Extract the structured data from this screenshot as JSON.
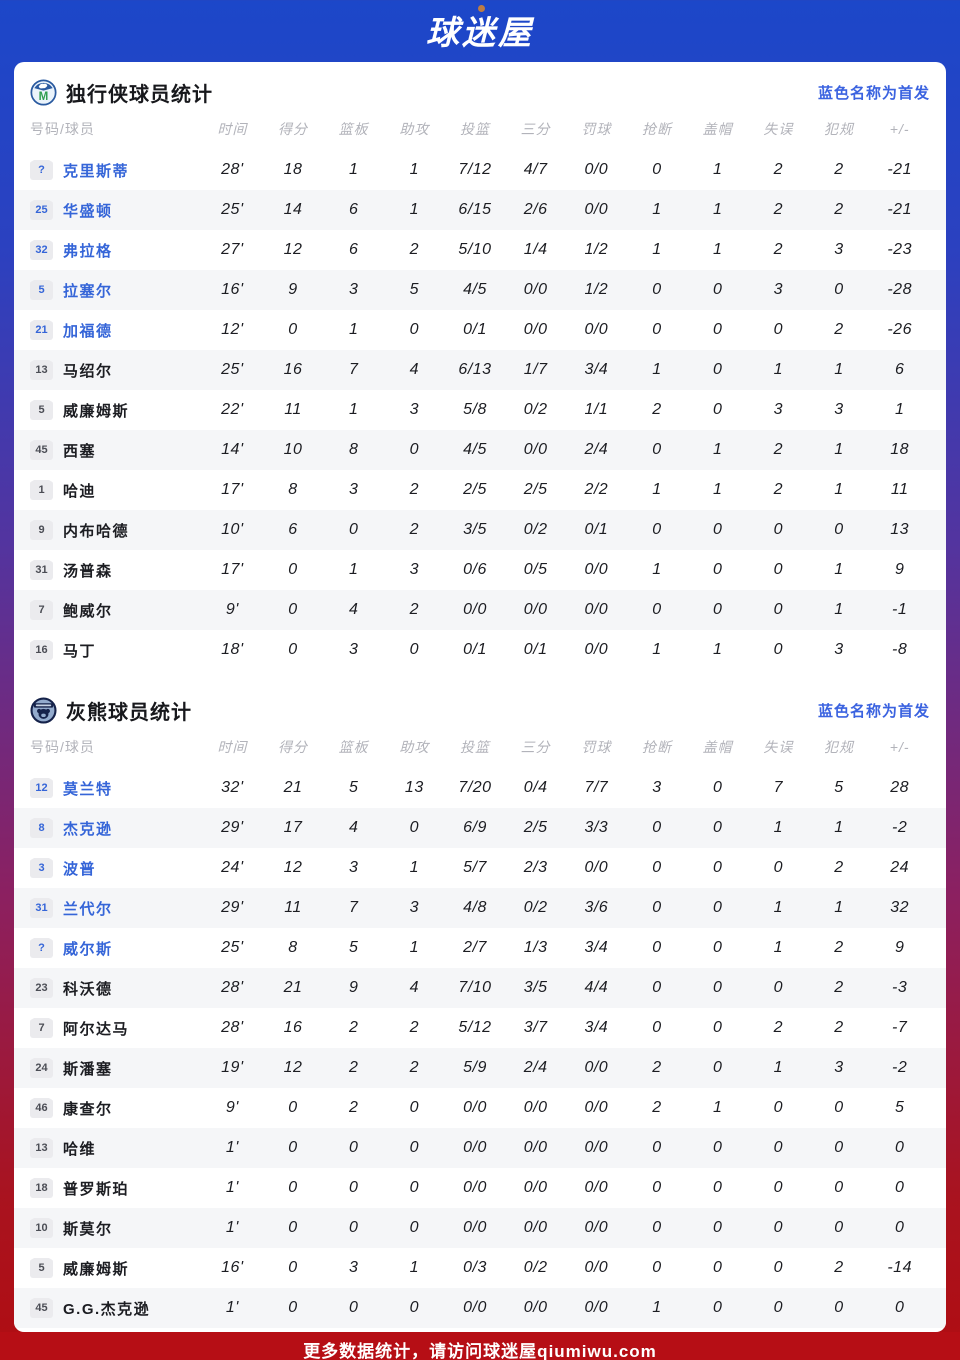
{
  "header": {
    "logo": "球迷屋"
  },
  "legend": "蓝色名称为首发",
  "columns": [
    "号码/球员",
    "时间",
    "得分",
    "篮板",
    "助攻",
    "投篮",
    "三分",
    "罚球",
    "抢断",
    "盖帽",
    "失误",
    "犯规",
    "+/-"
  ],
  "colors": {
    "header_blue": "#1c47c9",
    "accent_blue": "#3b63e0",
    "starter_blue": "#3565d8",
    "footer_red": "#b60e15",
    "row_stripe": "#f5f6f8"
  },
  "tables": [
    {
      "title": "独行侠球员统计",
      "team_icon": "mavericks-logo",
      "rows": [
        {
          "num": "?",
          "name": "克里斯蒂",
          "starter": true,
          "stats": [
            "28'",
            "18",
            "1",
            "1",
            "7/12",
            "4/7",
            "0/0",
            "0",
            "1",
            "2",
            "2",
            "-21"
          ]
        },
        {
          "num": "25",
          "name": "华盛顿",
          "starter": true,
          "stats": [
            "25'",
            "14",
            "6",
            "1",
            "6/15",
            "2/6",
            "0/0",
            "1",
            "1",
            "2",
            "2",
            "-21"
          ]
        },
        {
          "num": "32",
          "name": "弗拉格",
          "starter": true,
          "stats": [
            "27'",
            "12",
            "6",
            "2",
            "5/10",
            "1/4",
            "1/2",
            "1",
            "1",
            "2",
            "3",
            "-23"
          ]
        },
        {
          "num": "5",
          "name": "拉塞尔",
          "starter": true,
          "stats": [
            "16'",
            "9",
            "3",
            "5",
            "4/5",
            "0/0",
            "1/2",
            "0",
            "0",
            "3",
            "0",
            "-28"
          ]
        },
        {
          "num": "21",
          "name": "加福德",
          "starter": true,
          "stats": [
            "12'",
            "0",
            "1",
            "0",
            "0/1",
            "0/0",
            "0/0",
            "0",
            "0",
            "0",
            "2",
            "-26"
          ]
        },
        {
          "num": "13",
          "name": "马绍尔",
          "starter": false,
          "stats": [
            "25'",
            "16",
            "7",
            "4",
            "6/13",
            "1/7",
            "3/4",
            "1",
            "0",
            "1",
            "1",
            "6"
          ]
        },
        {
          "num": "5",
          "name": "威廉姆斯",
          "starter": false,
          "stats": [
            "22'",
            "11",
            "1",
            "3",
            "5/8",
            "0/2",
            "1/1",
            "2",
            "0",
            "3",
            "3",
            "1"
          ]
        },
        {
          "num": "45",
          "name": "西塞",
          "starter": false,
          "stats": [
            "14'",
            "10",
            "8",
            "0",
            "4/5",
            "0/0",
            "2/4",
            "0",
            "1",
            "2",
            "1",
            "18"
          ]
        },
        {
          "num": "1",
          "name": "哈迪",
          "starter": false,
          "stats": [
            "17'",
            "8",
            "3",
            "2",
            "2/5",
            "2/5",
            "2/2",
            "1",
            "1",
            "2",
            "1",
            "11"
          ]
        },
        {
          "num": "9",
          "name": "内布哈德",
          "starter": false,
          "stats": [
            "10'",
            "6",
            "0",
            "2",
            "3/5",
            "0/2",
            "0/1",
            "0",
            "0",
            "0",
            "0",
            "13"
          ]
        },
        {
          "num": "31",
          "name": "汤普森",
          "starter": false,
          "stats": [
            "17'",
            "0",
            "1",
            "3",
            "0/6",
            "0/5",
            "0/0",
            "1",
            "0",
            "0",
            "1",
            "9"
          ]
        },
        {
          "num": "7",
          "name": "鲍威尔",
          "starter": false,
          "stats": [
            "9'",
            "0",
            "4",
            "2",
            "0/0",
            "0/0",
            "0/0",
            "0",
            "0",
            "0",
            "1",
            "-1"
          ]
        },
        {
          "num": "16",
          "name": "马丁",
          "starter": false,
          "stats": [
            "18'",
            "0",
            "3",
            "0",
            "0/1",
            "0/1",
            "0/0",
            "1",
            "1",
            "0",
            "3",
            "-8"
          ]
        }
      ]
    },
    {
      "title": "灰熊球员统计",
      "team_icon": "grizzlies-logo",
      "rows": [
        {
          "num": "12",
          "name": "莫兰特",
          "starter": true,
          "stats": [
            "32'",
            "21",
            "5",
            "13",
            "7/20",
            "0/4",
            "7/7",
            "3",
            "0",
            "7",
            "5",
            "28"
          ]
        },
        {
          "num": "8",
          "name": "杰克逊",
          "starter": true,
          "stats": [
            "29'",
            "17",
            "4",
            "0",
            "6/9",
            "2/5",
            "3/3",
            "0",
            "0",
            "1",
            "1",
            "-2"
          ]
        },
        {
          "num": "3",
          "name": "波普",
          "starter": true,
          "stats": [
            "24'",
            "12",
            "3",
            "1",
            "5/7",
            "2/3",
            "0/0",
            "0",
            "0",
            "0",
            "2",
            "24"
          ]
        },
        {
          "num": "31",
          "name": "兰代尔",
          "starter": true,
          "stats": [
            "29'",
            "11",
            "7",
            "3",
            "4/8",
            "0/2",
            "3/6",
            "0",
            "0",
            "1",
            "1",
            "32"
          ]
        },
        {
          "num": "?",
          "name": "威尔斯",
          "starter": true,
          "stats": [
            "25'",
            "8",
            "5",
            "1",
            "2/7",
            "1/3",
            "3/4",
            "0",
            "0",
            "1",
            "2",
            "9"
          ]
        },
        {
          "num": "23",
          "name": "科沃德",
          "starter": false,
          "stats": [
            "28'",
            "21",
            "9",
            "4",
            "7/10",
            "3/5",
            "4/4",
            "0",
            "0",
            "0",
            "2",
            "-3"
          ]
        },
        {
          "num": "7",
          "name": "阿尔达马",
          "starter": false,
          "stats": [
            "28'",
            "16",
            "2",
            "2",
            "5/12",
            "3/7",
            "3/4",
            "0",
            "0",
            "2",
            "2",
            "-7"
          ]
        },
        {
          "num": "24",
          "name": "斯潘塞",
          "starter": false,
          "stats": [
            "19'",
            "12",
            "2",
            "2",
            "5/9",
            "2/4",
            "0/0",
            "2",
            "0",
            "1",
            "3",
            "-2"
          ]
        },
        {
          "num": "46",
          "name": "康查尔",
          "starter": false,
          "stats": [
            "9'",
            "0",
            "2",
            "0",
            "0/0",
            "0/0",
            "0/0",
            "2",
            "1",
            "0",
            "0",
            "5"
          ]
        },
        {
          "num": "13",
          "name": "哈维",
          "starter": false,
          "stats": [
            "1'",
            "0",
            "0",
            "0",
            "0/0",
            "0/0",
            "0/0",
            "0",
            "0",
            "0",
            "0",
            "0"
          ]
        },
        {
          "num": "18",
          "name": "普罗斯珀",
          "starter": false,
          "stats": [
            "1'",
            "0",
            "0",
            "0",
            "0/0",
            "0/0",
            "0/0",
            "0",
            "0",
            "0",
            "0",
            "0"
          ]
        },
        {
          "num": "10",
          "name": "斯莫尔",
          "starter": false,
          "stats": [
            "1'",
            "0",
            "0",
            "0",
            "0/0",
            "0/0",
            "0/0",
            "0",
            "0",
            "0",
            "0",
            "0"
          ]
        },
        {
          "num": "5",
          "name": "威廉姆斯",
          "starter": false,
          "stats": [
            "16'",
            "0",
            "3",
            "1",
            "0/3",
            "0/2",
            "0/0",
            "0",
            "0",
            "0",
            "2",
            "-14"
          ]
        },
        {
          "num": "45",
          "name": "G.G.杰克逊",
          "starter": false,
          "stats": [
            "1'",
            "0",
            "0",
            "0",
            "0/0",
            "0/0",
            "0/0",
            "1",
            "0",
            "0",
            "0",
            "0"
          ]
        }
      ]
    }
  ],
  "footer": {
    "text": "更多数据统计，请访问球迷屋qiumiwu.com"
  }
}
